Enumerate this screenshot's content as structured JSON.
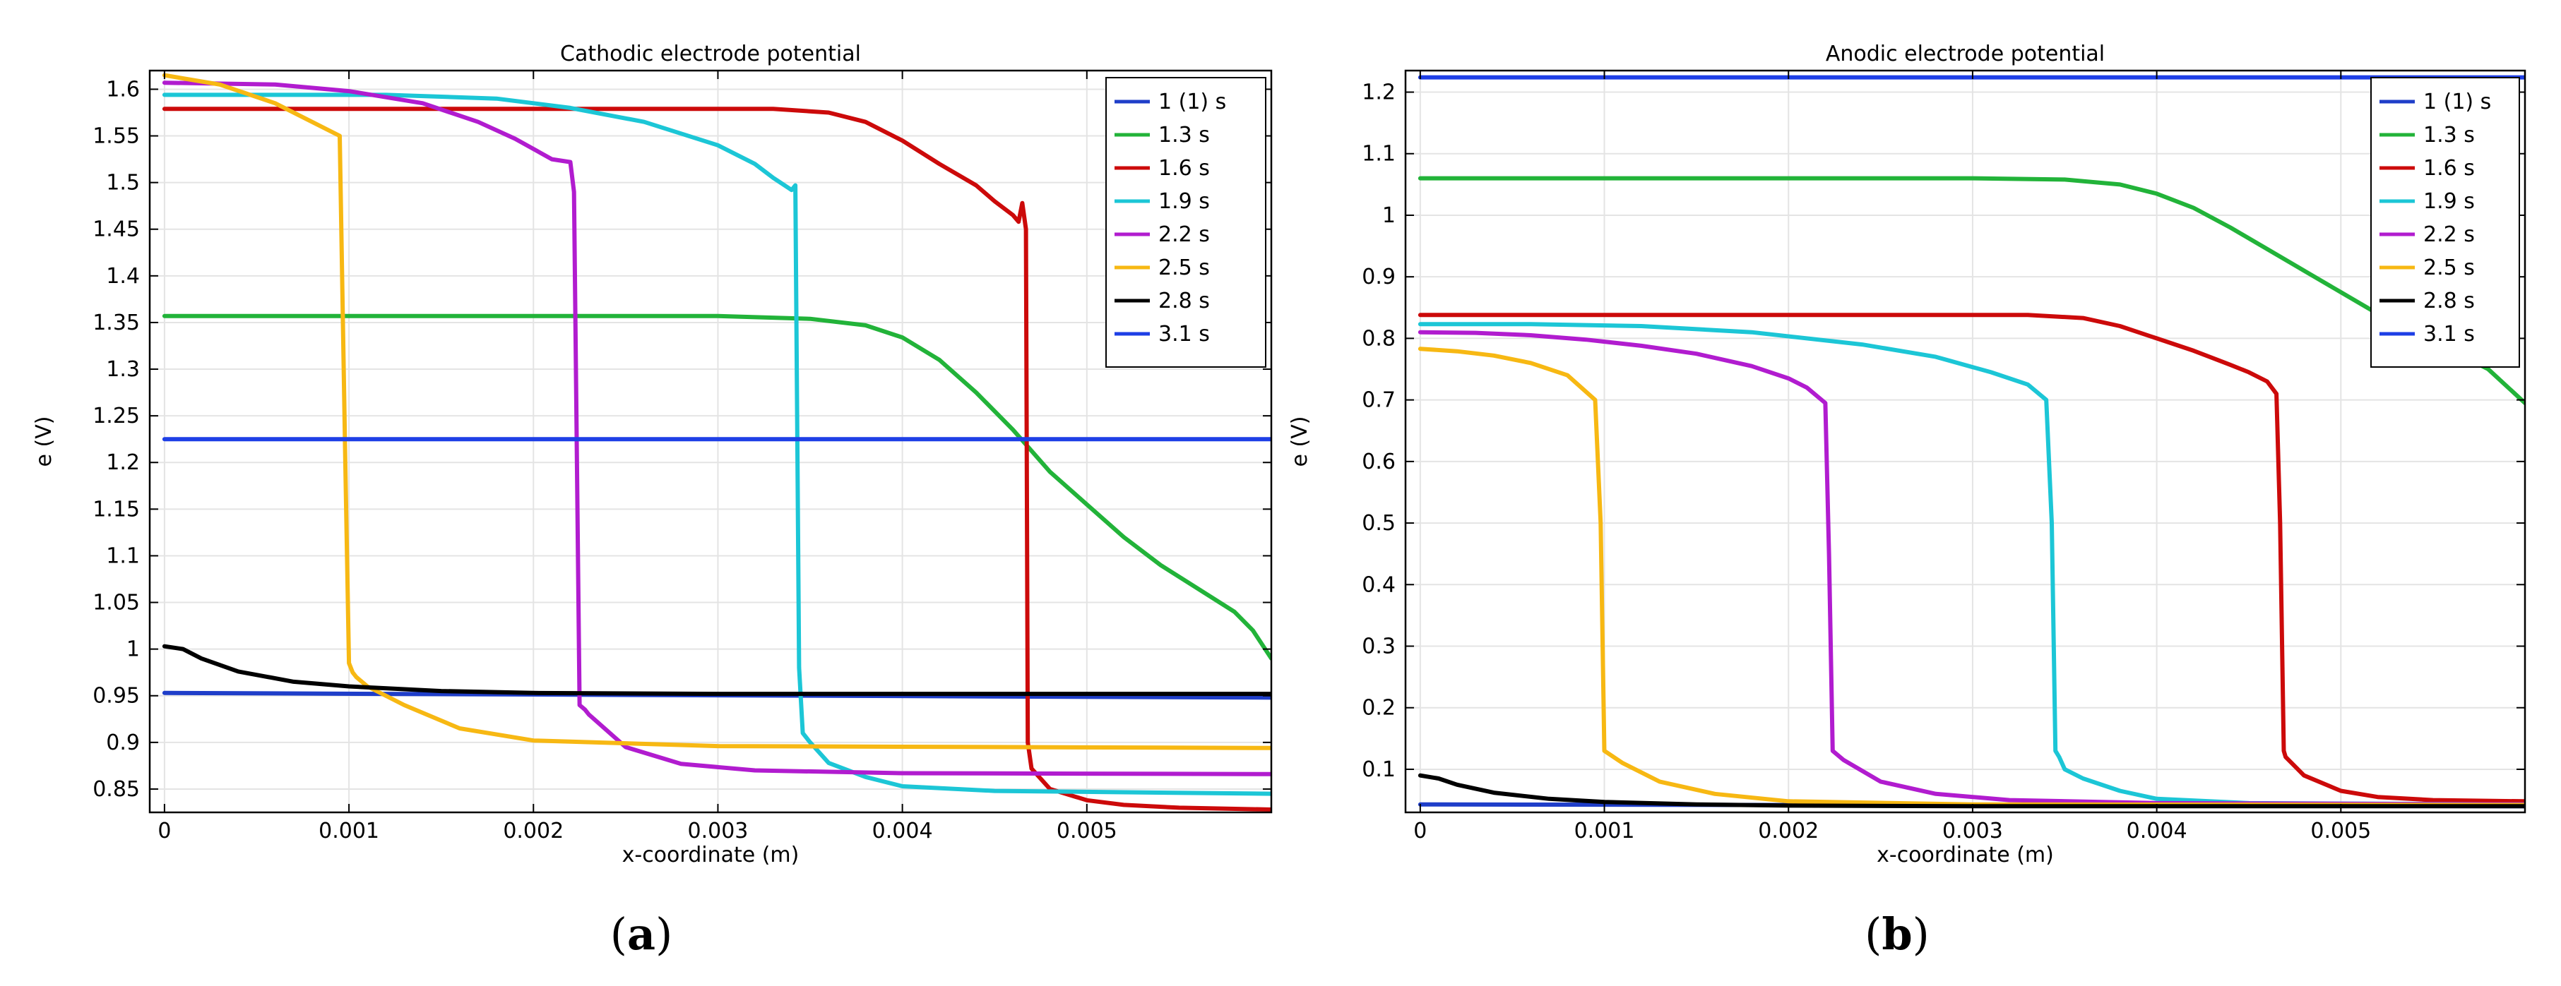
{
  "chart_data": [
    {
      "type": "line",
      "title": "Cathodic electrode potential",
      "xlabel": "x-coordinate (m)",
      "ylabel": "e (V)",
      "caption_letter": "a",
      "xlim": [
        -8e-05,
        0.006
      ],
      "ylim": [
        0.825,
        1.62
      ],
      "xticks": [
        0,
        0.001,
        0.002,
        0.003,
        0.004,
        0.005
      ],
      "xtick_labels": [
        "0",
        "0.001",
        "0.002",
        "0.003",
        "0.004",
        "0.005"
      ],
      "yticks": [
        0.85,
        0.9,
        0.95,
        1,
        1.05,
        1.1,
        1.15,
        1.2,
        1.25,
        1.3,
        1.35,
        1.4,
        1.45,
        1.5,
        1.55,
        1.6
      ],
      "ytick_labels": [
        "0.85",
        "0.9",
        "0.95",
        "1",
        "1.05",
        "1.1",
        "1.15",
        "1.2",
        "1.25",
        "1.3",
        "1.35",
        "1.4",
        "1.45",
        "1.5",
        "1.55",
        "1.6"
      ],
      "grid": true,
      "legend_position": "top-right",
      "series": [
        {
          "name": "1 (1) s",
          "color": "#1f3ec9",
          "x": [
            0,
            0.006
          ],
          "y": [
            0.953,
            0.948
          ]
        },
        {
          "name": "1.3 s",
          "color": "#22b339",
          "x": [
            0,
            0.003,
            0.0035,
            0.0038,
            0.004,
            0.0042,
            0.0044,
            0.0046,
            0.0048,
            0.005,
            0.0052,
            0.0054,
            0.0056,
            0.0058,
            0.0059,
            0.006
          ],
          "y": [
            1.357,
            1.357,
            1.354,
            1.347,
            1.334,
            1.31,
            1.275,
            1.235,
            1.19,
            1.155,
            1.12,
            1.09,
            1.065,
            1.04,
            1.02,
            0.99
          ]
        },
        {
          "name": "1.6 s",
          "color": "#cc0a0a",
          "x": [
            0,
            0.0033,
            0.0036,
            0.0038,
            0.004,
            0.0042,
            0.0044,
            0.0045,
            0.0046,
            0.00463,
            0.00465,
            0.00467,
            0.00468,
            0.0047,
            0.0048,
            0.005,
            0.0052,
            0.0055,
            0.006
          ],
          "y": [
            1.579,
            1.579,
            1.575,
            1.565,
            1.545,
            1.52,
            1.497,
            1.48,
            1.465,
            1.458,
            1.478,
            1.45,
            0.9,
            0.872,
            0.85,
            0.838,
            0.833,
            0.83,
            0.828
          ]
        },
        {
          "name": "1.9 s",
          "color": "#1cc6d6",
          "x": [
            0,
            0.0012,
            0.0018,
            0.0022,
            0.0026,
            0.003,
            0.0032,
            0.0033,
            0.0034,
            0.00342,
            0.00344,
            0.00346,
            0.0035,
            0.0036,
            0.0038,
            0.004,
            0.0045,
            0.006
          ],
          "y": [
            1.594,
            1.594,
            1.59,
            1.58,
            1.565,
            1.54,
            1.52,
            1.505,
            1.492,
            1.497,
            0.98,
            0.91,
            0.9,
            0.878,
            0.863,
            0.853,
            0.848,
            0.845
          ]
        },
        {
          "name": "2.2 s",
          "color": "#b11ccf",
          "x": [
            0,
            0.0006,
            0.001,
            0.0014,
            0.0017,
            0.0019,
            0.0021,
            0.0022,
            0.00222,
            0.00225,
            0.00228,
            0.0023,
            0.0025,
            0.0028,
            0.0032,
            0.004,
            0.006
          ],
          "y": [
            1.607,
            1.605,
            1.598,
            1.585,
            1.565,
            1.547,
            1.525,
            1.522,
            1.49,
            0.94,
            0.935,
            0.93,
            0.895,
            0.877,
            0.87,
            0.867,
            0.866
          ]
        },
        {
          "name": "2.5 s",
          "color": "#f7b813",
          "x": [
            0,
            0.0003,
            0.0006,
            0.0008,
            0.00095,
            0.00098,
            0.001,
            0.00102,
            0.00104,
            0.0011,
            0.0013,
            0.0016,
            0.002,
            0.003,
            0.006
          ],
          "y": [
            1.615,
            1.605,
            1.585,
            1.565,
            1.55,
            1.2,
            0.985,
            0.975,
            0.97,
            0.96,
            0.94,
            0.915,
            0.902,
            0.896,
            0.894
          ]
        },
        {
          "name": "2.8 s",
          "color": "#000000",
          "x": [
            0,
            0.0001,
            0.0002,
            0.0004,
            0.0007,
            0.001,
            0.0015,
            0.002,
            0.003,
            0.006
          ],
          "y": [
            1.003,
            1.0,
            0.99,
            0.976,
            0.965,
            0.96,
            0.955,
            0.953,
            0.952,
            0.952
          ]
        },
        {
          "name": "3.1 s",
          "color": "#1e3fe6",
          "x": [
            0,
            0.006
          ],
          "y": [
            1.225,
            1.225
          ]
        }
      ]
    },
    {
      "type": "line",
      "title": "Anodic electrode potential",
      "xlabel": "x-coordinate (m)",
      "ylabel": "e (V)",
      "caption_letter": "b",
      "xlim": [
        -8e-05,
        0.006
      ],
      "ylim": [
        0.03,
        1.235
      ],
      "xticks": [
        0,
        0.001,
        0.002,
        0.003,
        0.004,
        0.005
      ],
      "xtick_labels": [
        "0",
        "0.001",
        "0.002",
        "0.003",
        "0.004",
        "0.005"
      ],
      "yticks": [
        0.1,
        0.2,
        0.3,
        0.4,
        0.5,
        0.6,
        0.7,
        0.8,
        0.9,
        1,
        1.1,
        1.2
      ],
      "ytick_labels": [
        "0.1",
        "0.2",
        "0.3",
        "0.4",
        "0.5",
        "0.6",
        "0.7",
        "0.8",
        "0.9",
        "1",
        "1.1",
        "1.2"
      ],
      "grid": true,
      "legend_position": "top-right",
      "series": [
        {
          "name": "1 (1) s",
          "color": "#1f3ec9",
          "x": [
            0,
            0.006
          ],
          "y": [
            0.043,
            0.04
          ]
        },
        {
          "name": "1.3 s",
          "color": "#22b339",
          "x": [
            0,
            0.003,
            0.0035,
            0.0038,
            0.004,
            0.0042,
            0.0044,
            0.0046,
            0.0048,
            0.005,
            0.0052,
            0.0054,
            0.0056,
            0.0058,
            0.006
          ],
          "y": [
            1.06,
            1.06,
            1.058,
            1.05,
            1.035,
            1.012,
            0.98,
            0.945,
            0.91,
            0.875,
            0.84,
            0.81,
            0.78,
            0.75,
            0.695
          ]
        },
        {
          "name": "1.6 s",
          "color": "#cc0a0a",
          "x": [
            0,
            0.0033,
            0.0036,
            0.0038,
            0.004,
            0.0042,
            0.0044,
            0.0045,
            0.0046,
            0.00465,
            0.00467,
            0.00469,
            0.0047,
            0.0048,
            0.005,
            0.0052,
            0.0055,
            0.006
          ],
          "y": [
            0.838,
            0.838,
            0.833,
            0.82,
            0.8,
            0.78,
            0.757,
            0.745,
            0.73,
            0.71,
            0.5,
            0.13,
            0.12,
            0.09,
            0.065,
            0.055,
            0.05,
            0.048
          ]
        },
        {
          "name": "1.9 s",
          "color": "#1cc6d6",
          "x": [
            0,
            0.0006,
            0.0012,
            0.0018,
            0.0024,
            0.0028,
            0.0031,
            0.0033,
            0.0034,
            0.00343,
            0.00345,
            0.00347,
            0.0035,
            0.0036,
            0.0038,
            0.004,
            0.0045,
            0.006
          ],
          "y": [
            0.823,
            0.823,
            0.82,
            0.81,
            0.79,
            0.77,
            0.745,
            0.725,
            0.7,
            0.5,
            0.13,
            0.12,
            0.1,
            0.085,
            0.065,
            0.052,
            0.045,
            0.043
          ]
        },
        {
          "name": "2.2 s",
          "color": "#b11ccf",
          "x": [
            0,
            0.0003,
            0.0006,
            0.0009,
            0.0012,
            0.0015,
            0.0018,
            0.002,
            0.0021,
            0.0022,
            0.00222,
            0.00224,
            0.0023,
            0.0025,
            0.0028,
            0.0032,
            0.004,
            0.006
          ],
          "y": [
            0.81,
            0.809,
            0.805,
            0.798,
            0.788,
            0.775,
            0.755,
            0.735,
            0.72,
            0.695,
            0.45,
            0.13,
            0.115,
            0.08,
            0.06,
            0.05,
            0.045,
            0.043
          ]
        },
        {
          "name": "2.5 s",
          "color": "#f7b813",
          "x": [
            0,
            0.0002,
            0.0004,
            0.0006,
            0.0008,
            0.00095,
            0.00098,
            0.001,
            0.0011,
            0.0013,
            0.0016,
            0.002,
            0.003,
            0.006
          ],
          "y": [
            0.783,
            0.779,
            0.772,
            0.76,
            0.74,
            0.7,
            0.5,
            0.13,
            0.11,
            0.08,
            0.06,
            0.048,
            0.043,
            0.042
          ]
        },
        {
          "name": "2.8 s",
          "color": "#000000",
          "x": [
            0,
            0.0001,
            0.0002,
            0.0004,
            0.0007,
            0.001,
            0.0015,
            0.002,
            0.003,
            0.006
          ],
          "y": [
            0.09,
            0.085,
            0.075,
            0.062,
            0.052,
            0.047,
            0.043,
            0.041,
            0.04,
            0.04
          ]
        },
        {
          "name": "3.1 s",
          "color": "#1e3fe6",
          "x": [
            0,
            0.006
          ],
          "y": [
            1.224,
            1.224
          ]
        }
      ]
    }
  ]
}
